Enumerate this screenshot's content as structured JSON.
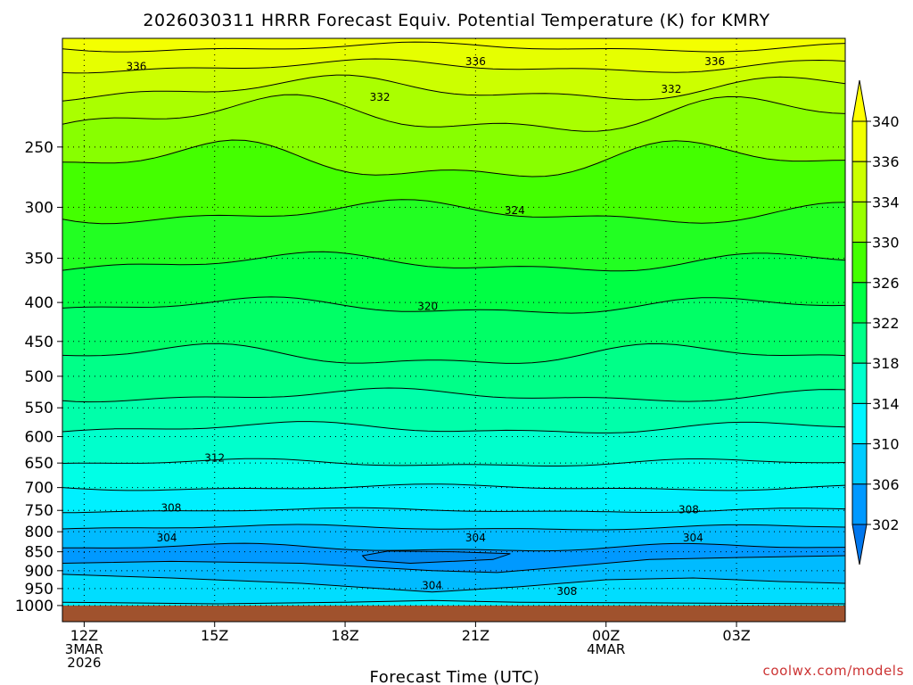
{
  "chart_data": {
    "type": "heatmap",
    "title": "2026030311 HRRR Forecast Equiv. Potential Temperature (K) for KMRY",
    "xlabel": "Forecast Time (UTC)",
    "ylabel": "",
    "watermark": "coolwx.com/models",
    "x": {
      "range_hours": [
        -0.5,
        17.5
      ],
      "ticks": [
        {
          "h": 0,
          "lines": [
            "12Z",
            "3MAR",
            "2026"
          ]
        },
        {
          "h": 3,
          "lines": [
            "15Z"
          ]
        },
        {
          "h": 6,
          "lines": [
            "18Z"
          ]
        },
        {
          "h": 9,
          "lines": [
            "21Z"
          ]
        },
        {
          "h": 12,
          "lines": [
            "00Z",
            "4MAR"
          ]
        },
        {
          "h": 15,
          "lines": [
            "03Z"
          ]
        }
      ]
    },
    "y": {
      "scale": "log-pressure",
      "range_hpa": [
        1050,
        180
      ],
      "ticks": [
        250,
        300,
        350,
        400,
        450,
        500,
        550,
        600,
        650,
        700,
        750,
        800,
        850,
        900,
        950,
        1000
      ]
    },
    "colorbar": {
      "labels": [
        "340",
        "336",
        "334",
        "330",
        "326",
        "322",
        "318",
        "314",
        "310",
        "306",
        "302"
      ],
      "colors": [
        "#f0ff00",
        "#ccff00",
        "#99ff00",
        "#44ff00",
        "#00ff44",
        "#00ff88",
        "#00ffcc",
        "#00f5ff",
        "#00ccff",
        "#0099ff"
      ]
    },
    "levels": [
      {
        "k": 338,
        "color": "#e6ff00",
        "base": 185,
        "amp": 2,
        "phase": 0.5
      },
      {
        "k": 336,
        "color": "#ccff00",
        "base": 196,
        "amp": 3,
        "phase": 1.1
      },
      {
        "k": 334,
        "color": "#aaff00",
        "base": 210,
        "amp": 6,
        "phase": 1.6
      },
      {
        "k": 332,
        "color": "#88ff00",
        "base": 228,
        "amp": 10,
        "phase": 2.3
      },
      {
        "k": 328,
        "color": "#44ff00",
        "base": 262,
        "amp": 12,
        "phase": 3.1
      },
      {
        "k": 324,
        "color": "#22ff22",
        "base": 305,
        "amp": 8,
        "phase": 0.7
      },
      {
        "k": 322,
        "color": "#00ff44",
        "base": 355,
        "amp": 8,
        "phase": 1.9
      },
      {
        "k": 320,
        "color": "#00ff66",
        "base": 405,
        "amp": 8,
        "phase": 2.6
      },
      {
        "k": 318,
        "color": "#00ff88",
        "base": 470,
        "amp": 12,
        "phase": 3.4
      },
      {
        "k": 316,
        "color": "#00ffaa",
        "base": 530,
        "amp": 8,
        "phase": 0.9
      },
      {
        "k": 314,
        "color": "#00ffcc",
        "base": 585,
        "amp": 8,
        "phase": 2.1
      },
      {
        "k": 312,
        "color": "#00ffe6",
        "base": 650,
        "amp": 6,
        "phase": 2.8
      },
      {
        "k": 310,
        "color": "#00f0ff",
        "base": 700,
        "amp": 5,
        "phase": 0.3
      },
      {
        "k": 308,
        "color": "#00ddff",
        "base": 750,
        "amp": 4,
        "phase": 1.4
      },
      {
        "k": 306,
        "color": "#00bbff",
        "base": 790,
        "amp": 5,
        "phase": 2.2
      },
      {
        "k": 304,
        "color": "#0099ff",
        "base": 840,
        "amp": 8,
        "phase": 3.0
      }
    ],
    "lower_levels": [
      {
        "k": 306,
        "color": "#00bbff",
        "pts": [
          [
            -0.5,
            880
          ],
          [
            2,
            875
          ],
          [
            5,
            880
          ],
          [
            8,
            900
          ],
          [
            9.5,
            905
          ],
          [
            11,
            890
          ],
          [
            13,
            870
          ],
          [
            15,
            865
          ],
          [
            17.5,
            860
          ]
        ]
      },
      {
        "k": 308,
        "color": "#00ddff",
        "pts": [
          [
            -0.5,
            910
          ],
          [
            2,
            920
          ],
          [
            5,
            935
          ],
          [
            8,
            960
          ],
          [
            10,
            945
          ],
          [
            12,
            925
          ],
          [
            14,
            920
          ],
          [
            16,
            930
          ],
          [
            17.5,
            935
          ]
        ]
      },
      {
        "k": 310,
        "color": "#00f0ff",
        "pts": [
          [
            -0.5,
            990
          ],
          [
            3,
            995
          ],
          [
            6,
            990
          ],
          [
            8,
            985
          ],
          [
            10,
            990
          ],
          [
            13,
            992
          ],
          [
            17.5,
            995
          ]
        ]
      }
    ],
    "blob": {
      "color": "#0088ee",
      "pts": [
        [
          6.4,
          860
        ],
        [
          7,
          848
        ],
        [
          8.5,
          850
        ],
        [
          9.8,
          855
        ],
        [
          9.4,
          870
        ],
        [
          7.5,
          880
        ],
        [
          6.5,
          872
        ]
      ]
    },
    "contour_labels": [
      {
        "text": "336",
        "h": 1.2,
        "p": 196
      },
      {
        "text": "336",
        "h": 9.0,
        "p": 193
      },
      {
        "text": "336",
        "h": 14.5,
        "p": 193
      },
      {
        "text": "332",
        "h": 6.8,
        "p": 215
      },
      {
        "text": "332",
        "h": 13.5,
        "p": 210
      },
      {
        "text": "324",
        "h": 9.9,
        "p": 303
      },
      {
        "text": "320",
        "h": 7.9,
        "p": 405
      },
      {
        "text": "312",
        "h": 3.0,
        "p": 640
      },
      {
        "text": "308",
        "h": 2.0,
        "p": 745
      },
      {
        "text": "308",
        "h": 13.9,
        "p": 749
      },
      {
        "text": "304",
        "h": 1.9,
        "p": 815
      },
      {
        "text": "304",
        "h": 9.0,
        "p": 815
      },
      {
        "text": "304",
        "h": 14.0,
        "p": 815
      },
      {
        "text": "304",
        "h": 8.0,
        "p": 942
      },
      {
        "text": "308",
        "h": 11.1,
        "p": 958
      }
    ],
    "ground": {
      "color": "#a0522d",
      "from_hpa": 1000
    }
  }
}
